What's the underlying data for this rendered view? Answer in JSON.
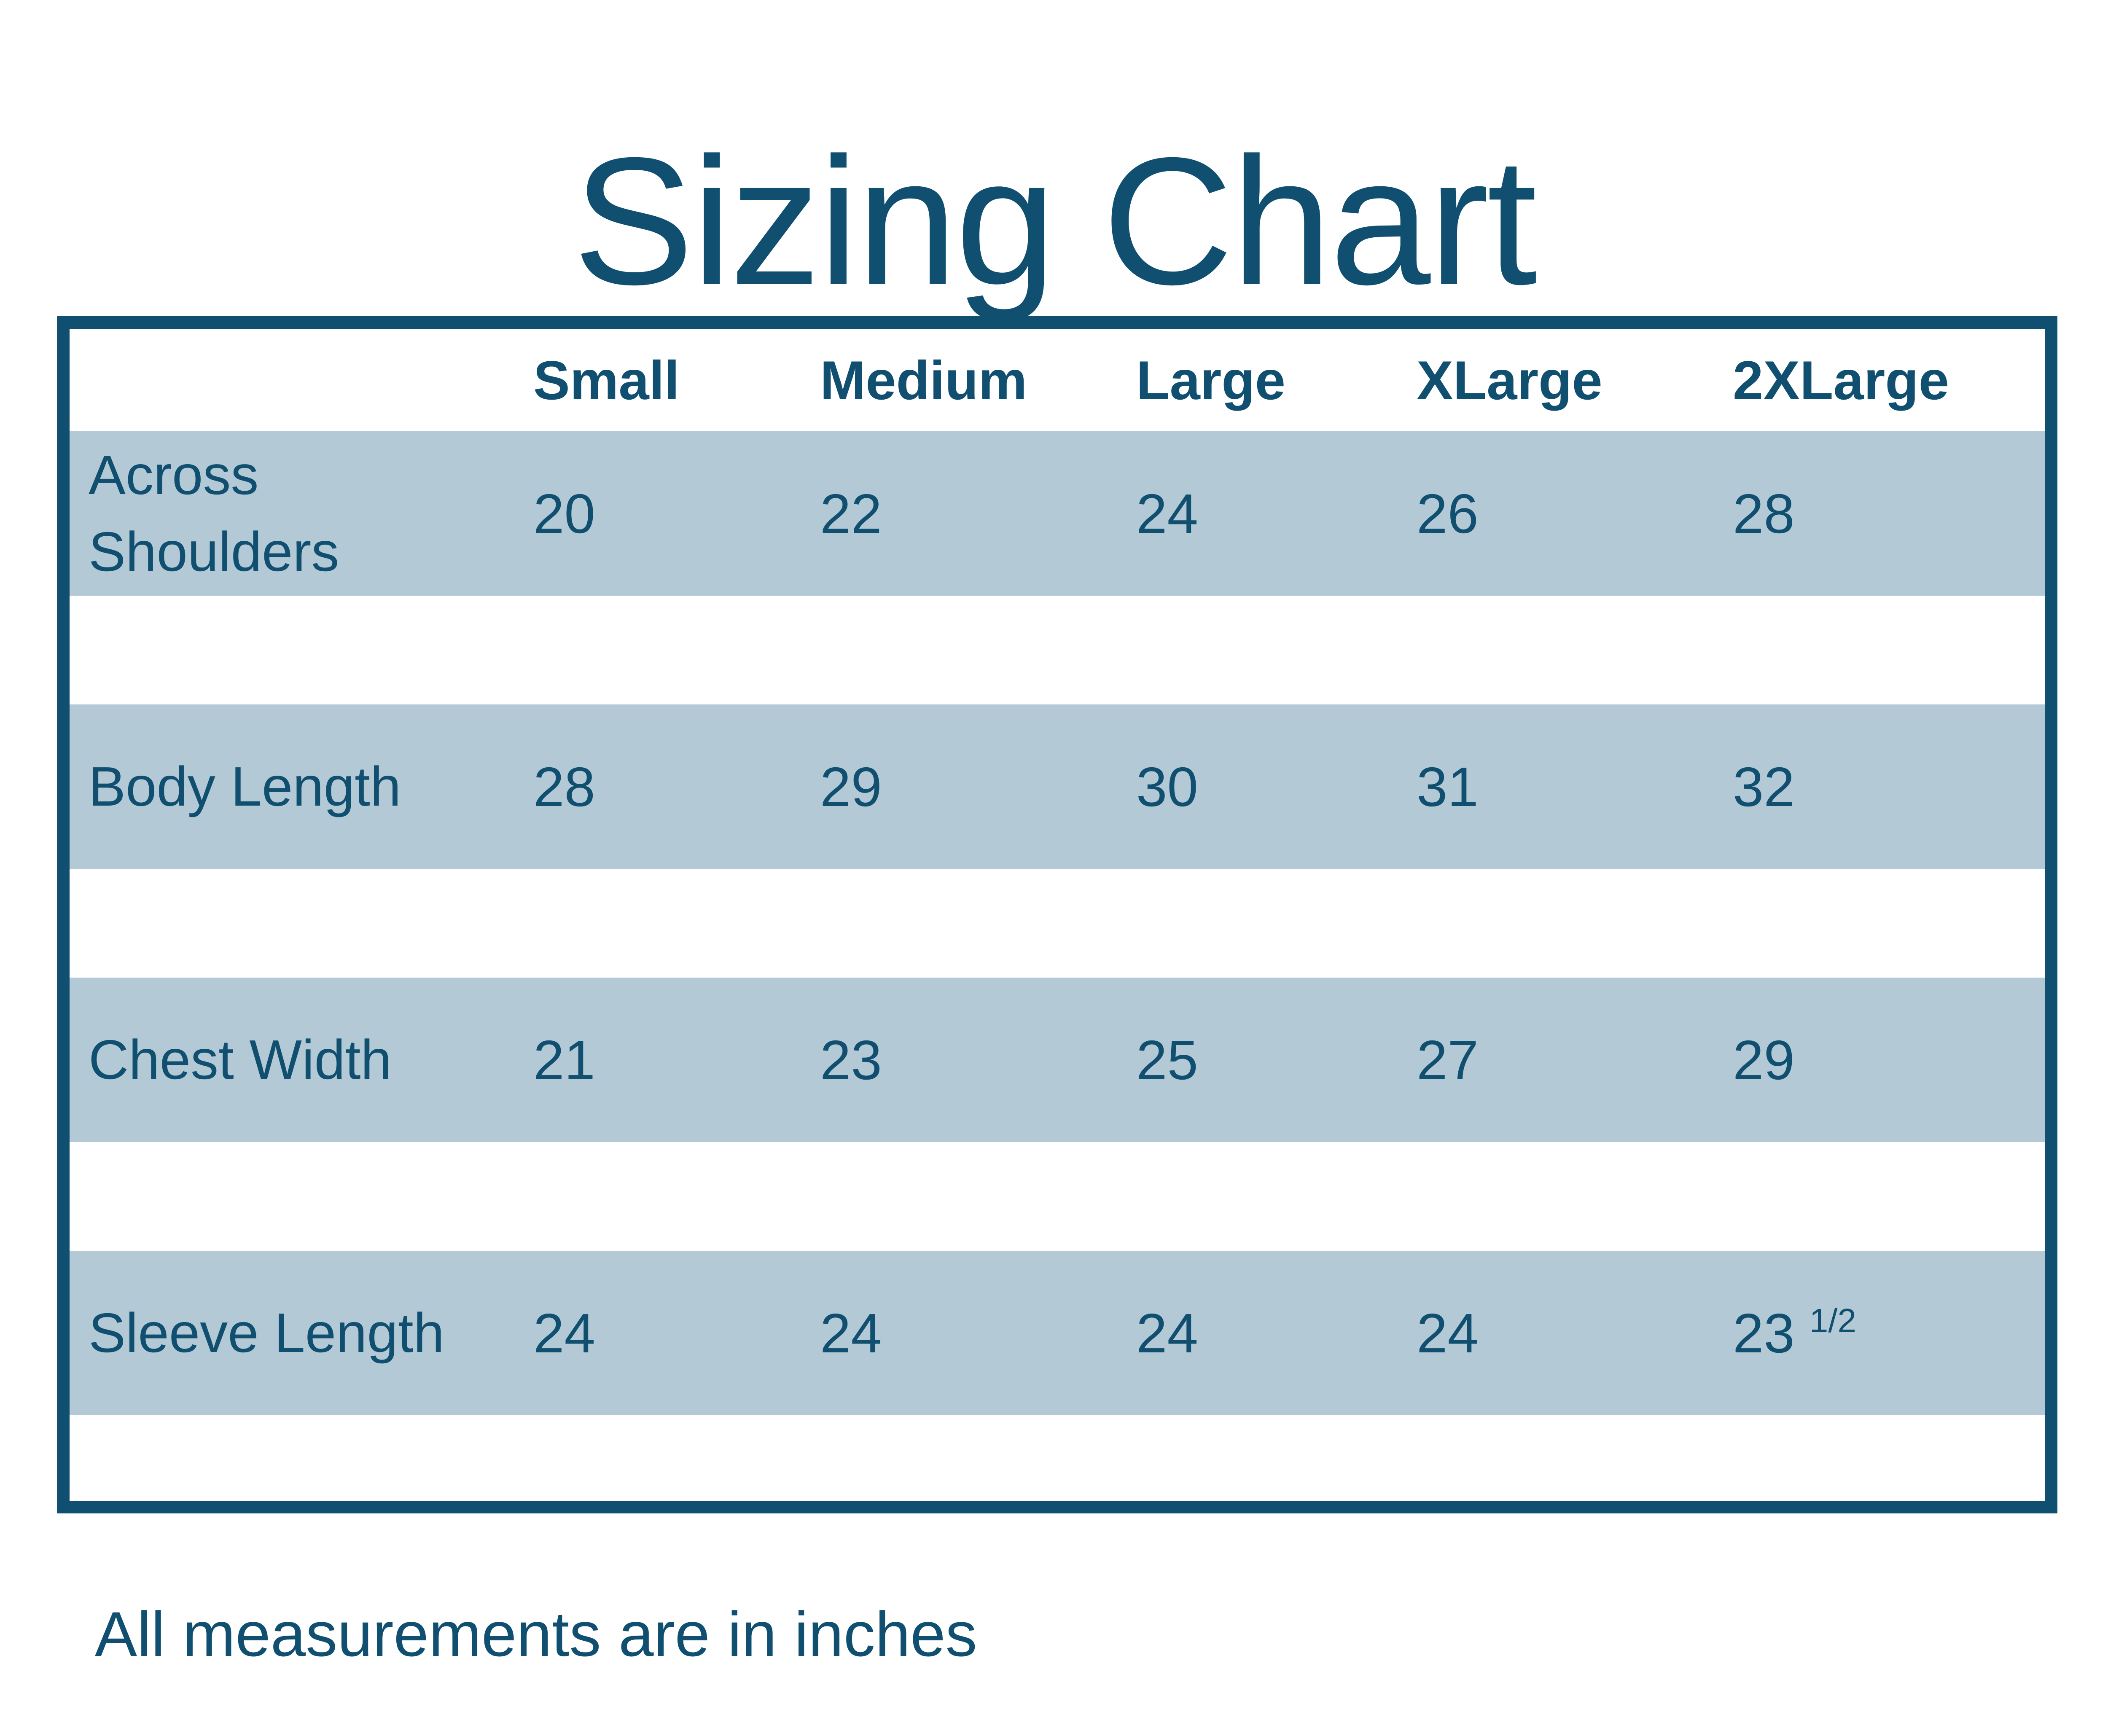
{
  "title": "Sizing Chart",
  "footer_note": "All measurements are in inches",
  "colors": {
    "dark_blue": "#114F70",
    "band_blue": "#B3C9D5",
    "page_bg": "#FFFFFF"
  },
  "table": {
    "size_headers": [
      "Small",
      "Medium",
      "Large",
      "XLarge",
      "2XLarge"
    ],
    "rows": [
      {
        "label": "Across Shoulders",
        "values": [
          "20",
          "22",
          "24",
          "26",
          "28"
        ]
      },
      {
        "label": "Body Length",
        "values": [
          "28",
          "29",
          "30",
          "31",
          "32"
        ]
      },
      {
        "label": "Chest Width",
        "values": [
          "21",
          "23",
          "25",
          "27",
          "29"
        ]
      },
      {
        "label": "Sleeve Length",
        "values": [
          "24",
          "24",
          "24",
          "24",
          "23"
        ],
        "last_value_fraction": "1/2"
      }
    ]
  },
  "chart_data": {
    "type": "table",
    "title": "Sizing Chart",
    "columns": [
      "Small",
      "Medium",
      "Large",
      "XLarge",
      "2XLarge"
    ],
    "rows": [
      {
        "label": "Across Shoulders",
        "values": [
          20,
          22,
          24,
          26,
          28
        ]
      },
      {
        "label": "Body Length",
        "values": [
          28,
          29,
          30,
          31,
          32
        ]
      },
      {
        "label": "Chest Width",
        "values": [
          21,
          23,
          25,
          27,
          29
        ]
      },
      {
        "label": "Sleeve Length",
        "values": [
          24,
          24,
          24,
          24,
          23.5
        ]
      }
    ],
    "units": "inches",
    "note": "All measurements are in inches"
  }
}
